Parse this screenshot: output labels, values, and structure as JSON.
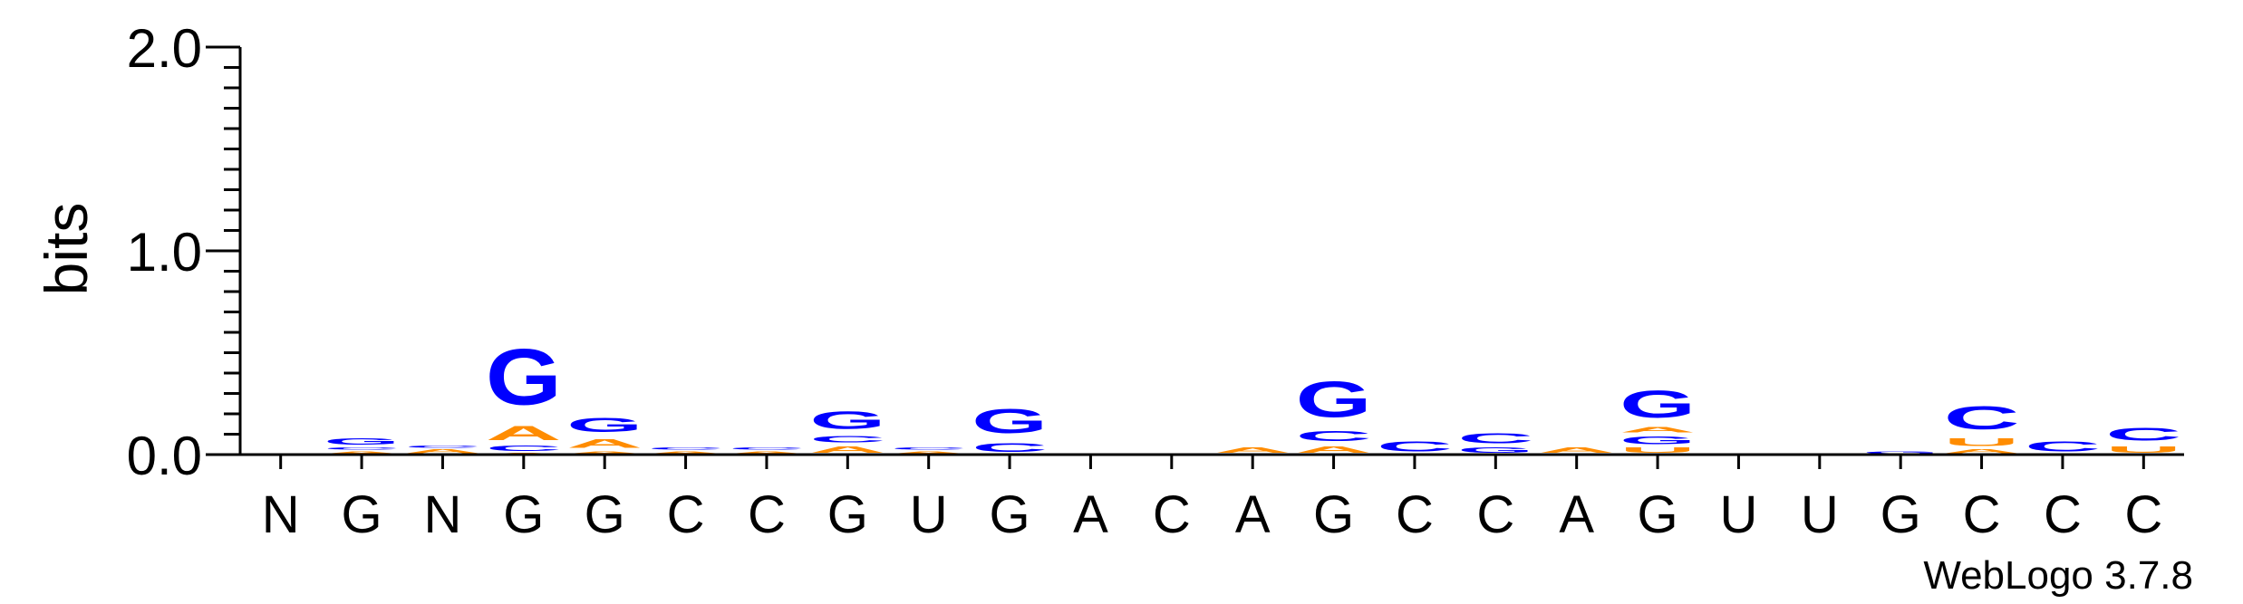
{
  "chart_data": {
    "type": "sequence-logo",
    "ylabel": "bits",
    "ylim": [
      0,
      2.0
    ],
    "yticks": [
      "0.0",
      "1.0",
      "2.0"
    ],
    "consensus": [
      "N",
      "G",
      "N",
      "G",
      "G",
      "C",
      "C",
      "G",
      "U",
      "G",
      "A",
      "C",
      "A",
      "G",
      "C",
      "C",
      "A",
      "G",
      "U",
      "U",
      "G",
      "C",
      "C",
      "C"
    ],
    "colors": {
      "G": "#0000ff",
      "C": "#0000ff",
      "A": "#ff8c00",
      "U": "#ff8c00"
    },
    "positions": [
      [],
      [
        {
          "letter": "A",
          "bits": 0.02
        },
        {
          "letter": "C",
          "bits": 0.02
        },
        {
          "letter": "G",
          "bits": 0.05
        }
      ],
      [
        {
          "letter": "A",
          "bits": 0.03
        },
        {
          "letter": "C",
          "bits": 0.02
        }
      ],
      [
        {
          "letter": "A",
          "bits": 0.01
        },
        {
          "letter": "C",
          "bits": 0.04
        },
        {
          "letter": "A",
          "bits": 0.11
        },
        {
          "letter": "G",
          "bits": 0.44
        }
      ],
      [
        {
          "letter": "A",
          "bits": 0.02
        },
        {
          "letter": "A",
          "bits": 0.07
        },
        {
          "letter": "G",
          "bits": 0.11
        }
      ],
      [
        {
          "letter": "A",
          "bits": 0.02
        },
        {
          "letter": "C",
          "bits": 0.02
        }
      ],
      [
        {
          "letter": "A",
          "bits": 0.02
        },
        {
          "letter": "C",
          "bits": 0.02
        }
      ],
      [
        {
          "letter": "A",
          "bits": 0.05
        },
        {
          "letter": "C",
          "bits": 0.05
        },
        {
          "letter": "G",
          "bits": 0.14
        }
      ],
      [
        {
          "letter": "A",
          "bits": 0.02
        },
        {
          "letter": "C",
          "bits": 0.02
        }
      ],
      [
        {
          "letter": "C",
          "bits": 0.07
        },
        {
          "letter": "G",
          "bits": 0.19
        }
      ],
      [],
      [],
      [
        {
          "letter": "A",
          "bits": 0.04
        }
      ],
      [
        {
          "letter": "A",
          "bits": 0.05
        },
        {
          "letter": "C",
          "bits": 0.08
        },
        {
          "letter": "G",
          "bits": 0.28
        }
      ],
      [
        {
          "letter": "C",
          "bits": 0.08
        }
      ],
      [
        {
          "letter": "G",
          "bits": 0.04
        },
        {
          "letter": "C",
          "bits": 0.08
        }
      ],
      [
        {
          "letter": "A",
          "bits": 0.04
        }
      ],
      [
        {
          "letter": "U",
          "bits": 0.04
        },
        {
          "letter": "G",
          "bits": 0.06
        },
        {
          "letter": "A",
          "bits": 0.04
        },
        {
          "letter": "G",
          "bits": 0.21
        }
      ],
      [],
      [],
      [
        {
          "letter": "G",
          "bits": 0.02
        }
      ],
      [
        {
          "letter": "A",
          "bits": 0.03
        },
        {
          "letter": "U",
          "bits": 0.06
        },
        {
          "letter": "C",
          "bits": 0.18
        }
      ],
      [
        {
          "letter": "C",
          "bits": 0.08
        }
      ],
      [
        {
          "letter": "U",
          "bits": 0.05
        },
        {
          "letter": "C",
          "bits": 0.1
        }
      ]
    ]
  },
  "credit": "WebLogo 3.7.8"
}
